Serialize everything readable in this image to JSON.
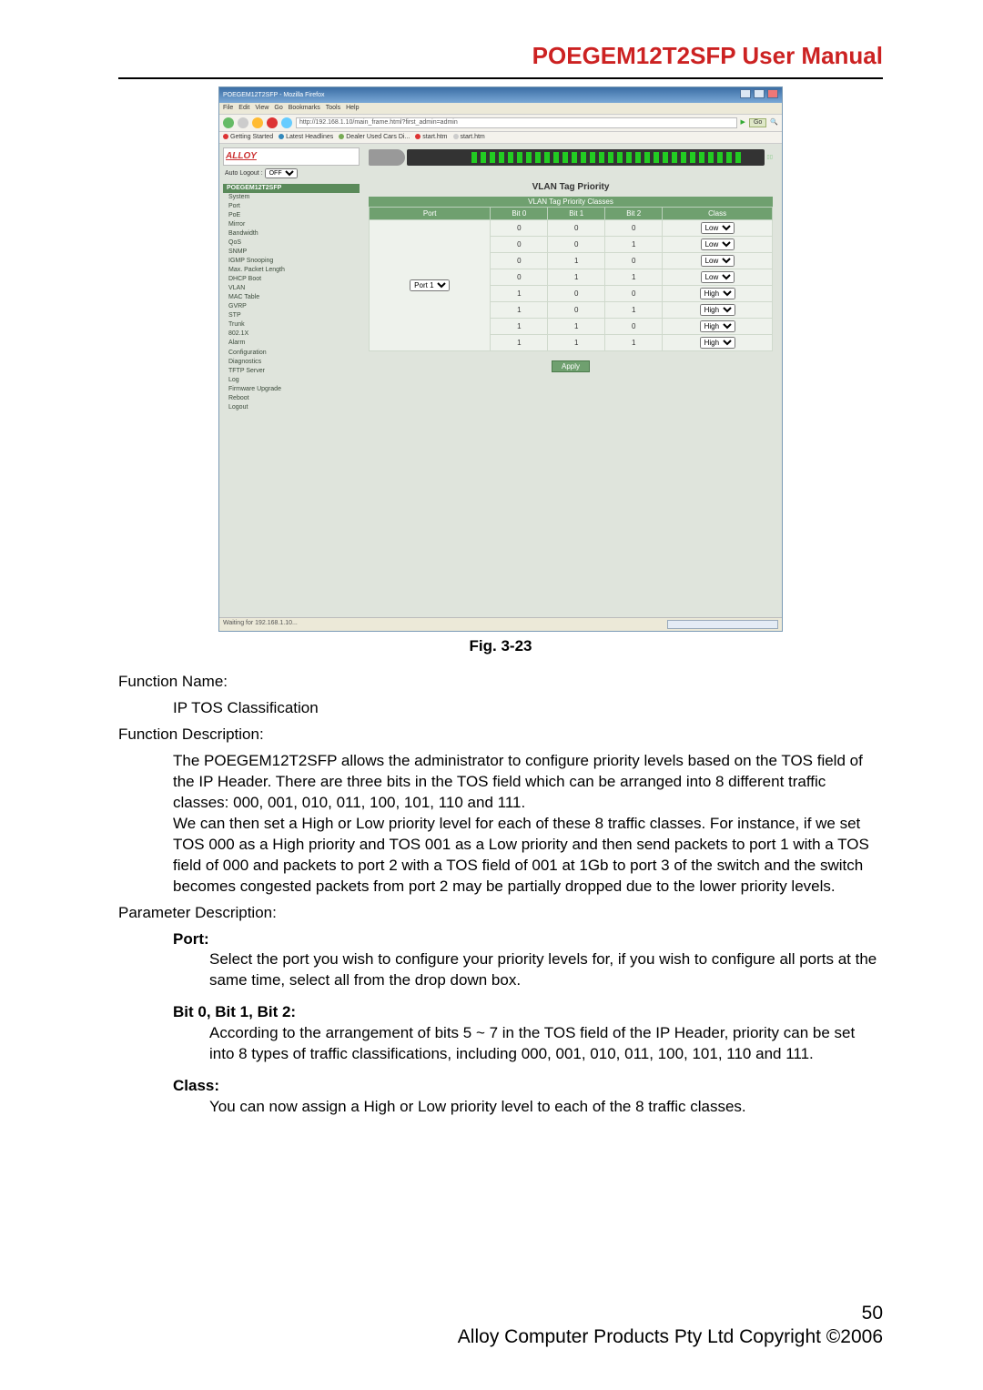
{
  "doc": {
    "header_title": "POEGEM12T2SFP User Manual",
    "caption": "Fig. 3-23",
    "fn_name_label": "Function Name:",
    "fn_name_value": "IP TOS Classification",
    "fn_desc_label": "Function Description:",
    "fn_desc_value": "The POEGEM12T2SFP allows the administrator to configure priority levels based on the TOS field of the IP Header. There are three bits in the TOS field which can be arranged into 8 different traffic classes: 000, 001, 010, 011, 100, 101, 110 and 111.\nWe can then set a High or Low priority level for each of these 8 traffic classes. For instance, if we set TOS 000 as a High priority and TOS 001 as a Low priority and then send packets to port 1 with a TOS field of 000 and packets to port 2 with a TOS field of 001 at 1Gb to port 3 of the switch and the switch becomes congested packets from port 2 may be partially dropped due to the lower priority levels.",
    "param_desc_label": "Parameter Description:",
    "port_label": "Port:",
    "port_text": "Select the port you wish to configure your priority levels for, if you wish to configure all ports at the same time, select all from the drop down box.",
    "bits_label": "Bit 0, Bit 1, Bit 2:",
    "bits_text": "According to the arrangement of bits 5 ~ 7 in the TOS field of the IP Header, priority can be set into 8 types of traffic classifications, including 000, 001, 010, 011, 100, 101, 110 and 111.",
    "class_label": "Class:",
    "class_text": "You can now assign a High or Low priority level to each of the 8 traffic classes.",
    "page_number": "50",
    "copyright": "Alloy Computer Products Pty Ltd Copyright ©2006"
  },
  "browser": {
    "window_title": "POEGEM12T2SFP - Mozilla Firefox",
    "menus": [
      "File",
      "Edit",
      "View",
      "Go",
      "Bookmarks",
      "Tools",
      "Help"
    ],
    "url": "http://192.168.1.10/main_frame.html?first_admin=admin",
    "go_label": "Go",
    "bookmarks": [
      {
        "color": "#d33",
        "label": "Getting Started"
      },
      {
        "color": "#38b",
        "label": "Latest Headlines"
      },
      {
        "color": "#7a5",
        "label": "Dealer Used Cars Di..."
      },
      {
        "color": "#d33",
        "label": "start.htm"
      },
      {
        "color": "#ccc",
        "label": "start.htm"
      }
    ],
    "status_left": "Waiting for 192.168.1.10...",
    "toolbar_icon_colors": {
      "back": "#6b6",
      "fwd": "#ccc",
      "reload": "#fb3",
      "stop": "#d33",
      "home": "#6cf"
    }
  },
  "switchui": {
    "logo_text": "ALLOY",
    "auto_logout_label": "Auto Logout : ",
    "auto_logout_value": "OFF",
    "nav_header": "POEGEM12T2SFP",
    "nav_items": [
      "System",
      "Port",
      "PoE",
      "Mirror",
      "Bandwidth",
      "QoS",
      "SNMP",
      "IGMP Snooping",
      "Max. Packet Length",
      "DHCP Boot",
      "VLAN",
      "MAC Table",
      "GVRP",
      "STP",
      "Trunk",
      "802.1X",
      "Alarm",
      "Configuration",
      "Diagnostics",
      "TFTP Server",
      "Log",
      "Firmware Upgrade",
      "Reboot",
      "Logout"
    ],
    "panel_title": "VLAN Tag Priority",
    "panel_subtitle": "VLAN Tag Priority Classes",
    "columns": [
      "Port",
      "Bit 0",
      "Bit 1",
      "Bit 2",
      "Class"
    ],
    "port_selected": "Port 1",
    "rows": [
      {
        "b0": "0",
        "b1": "0",
        "b2": "0",
        "cls": "Low"
      },
      {
        "b0": "0",
        "b1": "0",
        "b2": "1",
        "cls": "Low"
      },
      {
        "b0": "0",
        "b1": "1",
        "b2": "0",
        "cls": "Low"
      },
      {
        "b0": "0",
        "b1": "1",
        "b2": "1",
        "cls": "Low"
      },
      {
        "b0": "1",
        "b1": "0",
        "b2": "0",
        "cls": "High"
      },
      {
        "b0": "1",
        "b1": "0",
        "b2": "1",
        "cls": "High"
      },
      {
        "b0": "1",
        "b1": "1",
        "b2": "0",
        "cls": "High"
      },
      {
        "b0": "1",
        "b1": "1",
        "b2": "1",
        "cls": "High"
      }
    ],
    "apply_label": "Apply"
  }
}
